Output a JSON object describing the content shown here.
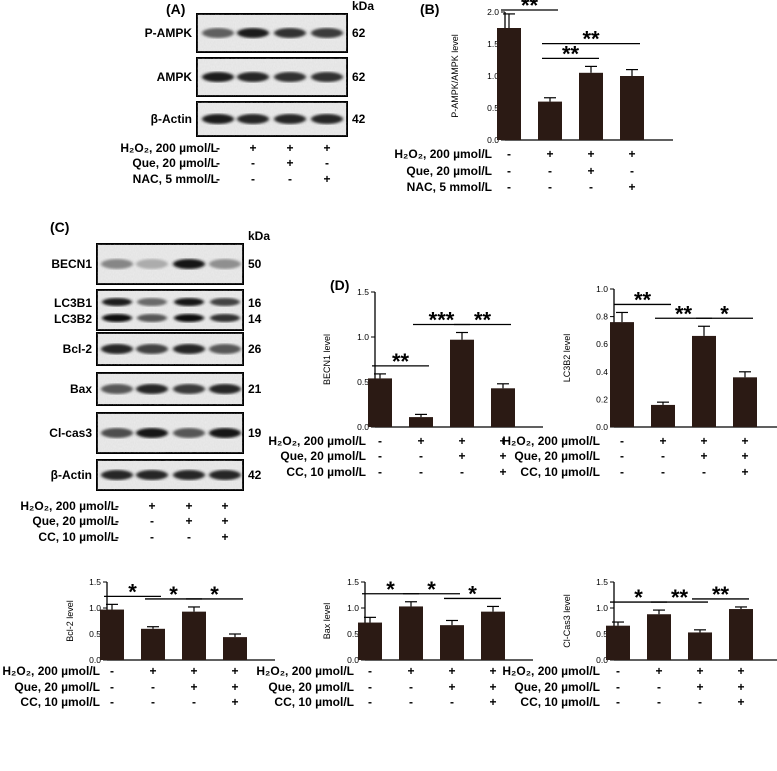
{
  "panels": {
    "A": "(A)",
    "B": "(B)",
    "C": "(C)",
    "D": "(D)"
  },
  "blot_A": {
    "unit": "kDa",
    "rows": [
      {
        "protein": "P-AMPK",
        "kda": "62"
      },
      {
        "protein": "AMPK",
        "kda": "62"
      },
      {
        "protein": "β-Actin",
        "kda": "42"
      }
    ],
    "treatments": [
      {
        "label": "H₂O₂, 200 µmol/L",
        "signs": [
          "-",
          "+",
          "+",
          "+"
        ]
      },
      {
        "label": "Que, 20 µmol/L",
        "signs": [
          "-",
          "-",
          "+",
          "-"
        ]
      },
      {
        "label": "NAC, 5 mmol/L",
        "signs": [
          "-",
          "-",
          "-",
          "+"
        ]
      }
    ]
  },
  "blot_C": {
    "unit": "kDa",
    "rows": [
      {
        "protein": "BECN1",
        "kda": "50"
      },
      {
        "protein": "LC3B1",
        "protein2": "LC3B2",
        "kda": "16",
        "kda2": "14"
      },
      {
        "protein": "Bcl-2",
        "kda": "26"
      },
      {
        "protein": "Bax",
        "kda": "21"
      },
      {
        "protein": "Cl-cas3",
        "kda": "19"
      },
      {
        "protein": "β-Actin",
        "kda": "42"
      }
    ],
    "treatments": [
      {
        "label": "H₂O₂, 200 µmol/L",
        "signs": [
          "-",
          "+",
          "+",
          "+"
        ]
      },
      {
        "label": "Que, 20 µmol/L",
        "signs": [
          "-",
          "-",
          "+",
          "+"
        ]
      },
      {
        "label": "CC, 10 µmol/L",
        "signs": [
          "-",
          "-",
          "-",
          "+"
        ]
      }
    ]
  },
  "chart_data": [
    {
      "id": "B",
      "type": "bar",
      "ylabel": "P-AMPK/AMPK level",
      "ylim": [
        0,
        2.0
      ],
      "yticks": [
        0.0,
        0.5,
        1.0,
        1.5,
        2.0
      ],
      "ytick_labels": [
        "0.0",
        "0.5",
        "1.0",
        "1.5",
        "2.0"
      ],
      "values": [
        1.75,
        0.6,
        1.05,
        1.0
      ],
      "errors": [
        0.22,
        0.06,
        0.1,
        0.1
      ],
      "significance": [
        {
          "a": 0,
          "b": 1,
          "label": "**"
        },
        {
          "a": 1,
          "b": 2,
          "label": "**"
        },
        {
          "a": 1,
          "b": 3,
          "label": "**"
        }
      ],
      "treatments": [
        {
          "label": "H₂O₂, 200 µmol/L",
          "signs": [
            "-",
            "+",
            "+",
            "+"
          ]
        },
        {
          "label": "Que, 20 µmol/L",
          "signs": [
            "-",
            "-",
            "+",
            "-"
          ]
        },
        {
          "label": "NAC, 5 mmol/L",
          "signs": [
            "-",
            "-",
            "-",
            "+"
          ]
        }
      ]
    },
    {
      "id": "D-BECN1",
      "type": "bar",
      "ylabel": "BECN1 level",
      "ylim": [
        0,
        1.5
      ],
      "yticks": [
        0.0,
        0.5,
        1.0,
        1.5
      ],
      "ytick_labels": [
        "0.0",
        "0.5",
        "1.0",
        "1.5"
      ],
      "values": [
        0.54,
        0.11,
        0.97,
        0.43
      ],
      "errors": [
        0.05,
        0.03,
        0.08,
        0.05
      ],
      "significance": [
        {
          "a": 0,
          "b": 1,
          "label": "**"
        },
        {
          "a": 1,
          "b": 2,
          "label": "***"
        },
        {
          "a": 2,
          "b": 3,
          "label": "**"
        }
      ],
      "treatments": [
        {
          "label": "H₂O₂, 200 µmol/L",
          "signs": [
            "-",
            "+",
            "+",
            "+"
          ]
        },
        {
          "label": "Que, 20 µmol/L",
          "signs": [
            "-",
            "-",
            "+",
            "+"
          ]
        },
        {
          "label": "CC, 10 µmol/L",
          "signs": [
            "-",
            "-",
            "-",
            "+"
          ]
        }
      ]
    },
    {
      "id": "D-LC3B2",
      "type": "bar",
      "ylabel": "LC3B2 level",
      "ylim": [
        0,
        1.0
      ],
      "yticks": [
        0.0,
        0.2,
        0.4,
        0.6,
        0.8,
        1.0
      ],
      "ytick_labels": [
        "0.0",
        "0.2",
        "0.4",
        "0.6",
        "0.8",
        "1.0"
      ],
      "values": [
        0.76,
        0.16,
        0.66,
        0.36
      ],
      "errors": [
        0.07,
        0.02,
        0.07,
        0.04
      ],
      "significance": [
        {
          "a": 0,
          "b": 1,
          "label": "**"
        },
        {
          "a": 1,
          "b": 2,
          "label": "**"
        },
        {
          "a": 2,
          "b": 3,
          "label": "*"
        }
      ],
      "treatments": [
        {
          "label": "H₂O₂, 200 µmol/L",
          "signs": [
            "-",
            "+",
            "+",
            "+"
          ]
        },
        {
          "label": "Que, 20 µmol/L",
          "signs": [
            "-",
            "-",
            "+",
            "+"
          ]
        },
        {
          "label": "CC, 10 µmol/L",
          "signs": [
            "-",
            "-",
            "-",
            "+"
          ]
        }
      ]
    },
    {
      "id": "Bcl-2",
      "type": "bar",
      "ylabel": "Bcl-2 level",
      "ylim": [
        0,
        1.5
      ],
      "yticks": [
        0.0,
        0.5,
        1.0,
        1.5
      ],
      "ytick_labels": [
        "0.0",
        "0.5",
        "1.0",
        "1.5"
      ],
      "values": [
        0.97,
        0.6,
        0.93,
        0.44
      ],
      "errors": [
        0.1,
        0.04,
        0.09,
        0.06
      ],
      "significance": [
        {
          "a": 0,
          "b": 1,
          "label": "*"
        },
        {
          "a": 1,
          "b": 2,
          "label": "*"
        },
        {
          "a": 2,
          "b": 3,
          "label": "*"
        }
      ],
      "treatments": [
        {
          "label": "H₂O₂, 200 µmol/L",
          "signs": [
            "-",
            "+",
            "+",
            "+"
          ]
        },
        {
          "label": "Que, 20 µmol/L",
          "signs": [
            "-",
            "-",
            "+",
            "+"
          ]
        },
        {
          "label": "CC, 10 µmol/L",
          "signs": [
            "-",
            "-",
            "-",
            "+"
          ]
        }
      ]
    },
    {
      "id": "Bax",
      "type": "bar",
      "ylabel": "Bax level",
      "ylim": [
        0,
        1.5
      ],
      "yticks": [
        0.0,
        0.5,
        1.0,
        1.5
      ],
      "ytick_labels": [
        "0.0",
        "0.5",
        "1.0",
        "1.5"
      ],
      "values": [
        0.72,
        1.03,
        0.67,
        0.93
      ],
      "errors": [
        0.1,
        0.09,
        0.09,
        0.1
      ],
      "significance": [
        {
          "a": 0,
          "b": 1,
          "label": "*"
        },
        {
          "a": 1,
          "b": 2,
          "label": "*"
        },
        {
          "a": 2,
          "b": 3,
          "label": "*"
        }
      ],
      "treatments": [
        {
          "label": "H₂O₂, 200 µmol/L",
          "signs": [
            "-",
            "+",
            "+",
            "+"
          ]
        },
        {
          "label": "Que, 20 µmol/L",
          "signs": [
            "-",
            "-",
            "+",
            "+"
          ]
        },
        {
          "label": "CC, 10 µmol/L",
          "signs": [
            "-",
            "-",
            "-",
            "+"
          ]
        }
      ]
    },
    {
      "id": "Cl-Cas3",
      "type": "bar",
      "ylabel": "Cl-Cas3 level",
      "ylim": [
        0,
        1.5
      ],
      "yticks": [
        0.0,
        0.5,
        1.0,
        1.5
      ],
      "ytick_labels": [
        "0.0",
        "0.5",
        "1.0",
        "1.5"
      ],
      "values": [
        0.66,
        0.88,
        0.53,
        0.98
      ],
      "errors": [
        0.07,
        0.08,
        0.05,
        0.04
      ],
      "significance": [
        {
          "a": 0,
          "b": 1,
          "label": "*"
        },
        {
          "a": 1,
          "b": 2,
          "label": "**"
        },
        {
          "a": 2,
          "b": 3,
          "label": "**"
        }
      ],
      "treatments": [
        {
          "label": "H₂O₂, 200 µmol/L",
          "signs": [
            "-",
            "+",
            "+",
            "+"
          ]
        },
        {
          "label": "Que, 20 µmol/L",
          "signs": [
            "-",
            "-",
            "+",
            "+"
          ]
        },
        {
          "label": "CC, 10 µmol/L",
          "signs": [
            "-",
            "-",
            "-",
            "+"
          ]
        }
      ]
    }
  ]
}
